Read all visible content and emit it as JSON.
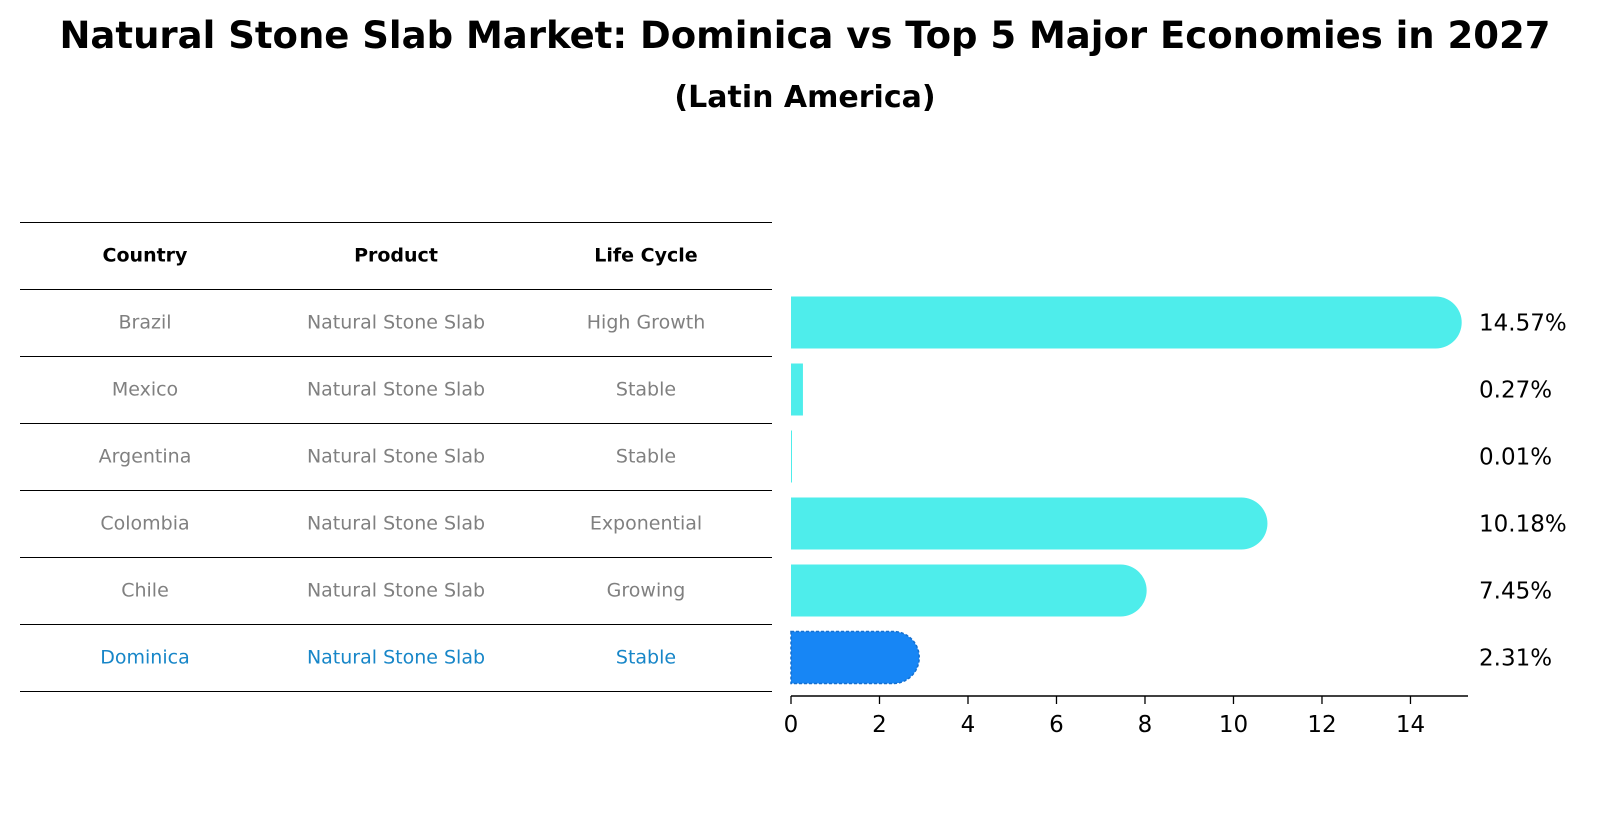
{
  "title": "Natural Stone Slab Market: Dominica vs Top 5 Major Economies in 2027",
  "subtitle": "(Latin America)",
  "colors": {
    "bar": "#4EEDEB",
    "highlight_bar": "#1786F5",
    "highlight_text": "#1786C8",
    "row_text": "#808080"
  },
  "table": {
    "headers": [
      "Country",
      "Product",
      "Life Cycle"
    ],
    "rows": [
      {
        "country": "Brazil",
        "product": "Natural Stone Slab",
        "life_cycle": "High Growth"
      },
      {
        "country": "Mexico",
        "product": "Natural Stone Slab",
        "life_cycle": "Stable"
      },
      {
        "country": "Argentina",
        "product": "Natural Stone Slab",
        "life_cycle": "Stable"
      },
      {
        "country": "Colombia",
        "product": "Natural Stone Slab",
        "life_cycle": "Exponential"
      },
      {
        "country": "Chile",
        "product": "Natural Stone Slab",
        "life_cycle": "Growing"
      },
      {
        "country": "Dominica",
        "product": "Natural Stone Slab",
        "life_cycle": "Stable"
      }
    ]
  },
  "chart_data": {
    "type": "bar",
    "orientation": "horizontal",
    "categories": [
      "Brazil",
      "Mexico",
      "Argentina",
      "Colombia",
      "Chile",
      "Dominica"
    ],
    "values": [
      14.57,
      0.27,
      0.01,
      10.18,
      7.45,
      2.31
    ],
    "value_labels": [
      "14.57%",
      "0.27%",
      "0.01%",
      "10.18%",
      "7.45%",
      "2.31%"
    ],
    "highlight": "Dominica",
    "xlim": [
      0,
      15.3
    ],
    "xticks": [
      0,
      2,
      4,
      6,
      8,
      10,
      12,
      14
    ],
    "grid": false
  }
}
